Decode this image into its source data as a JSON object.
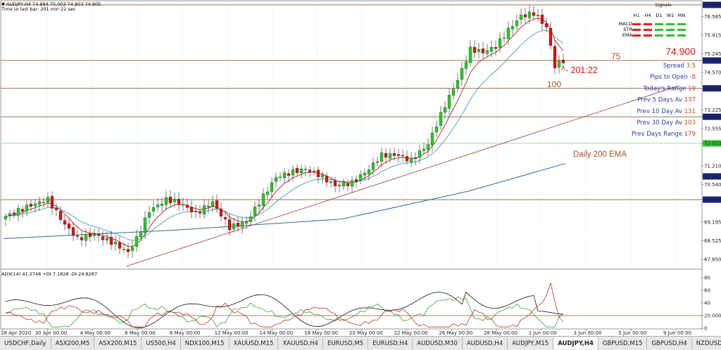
{
  "header": {
    "line1": "▼ AUDJPY,H4  74.984 75.002 74.903 74.905",
    "line2": "Time to last bar: 201 min 22 sec"
  },
  "signals": {
    "title": "Signals",
    "cols": [
      "H1",
      "H4",
      "D1",
      "W1",
      "MN"
    ],
    "rows": [
      {
        "name": "MACD",
        "colors": [
          "#e02020",
          "#e02020",
          "#30c030",
          "#30c030",
          "#30c030"
        ]
      },
      {
        "name": "STR",
        "colors": [
          "#e02020",
          "#e02020",
          "#30c030",
          "#30c030",
          "#30c030"
        ]
      },
      {
        "name": "EMA",
        "colors": [
          "#e02020",
          "#e02020",
          "#30c030",
          "#30c030",
          "#30c030"
        ]
      }
    ]
  },
  "price_display": "74.900",
  "info_panel": [
    {
      "label": "Spread",
      "value": "3.5"
    },
    {
      "label": "Pips to Open",
      "value": "-8"
    },
    {
      "label": "Today's Range",
      "value": "10"
    },
    {
      "label": "Prev 5 Days Av",
      "value": "137"
    },
    {
      "label": "Prev 10 Day Av",
      "value": "131"
    },
    {
      "label": "Prev 30 Day Av",
      "value": "103"
    },
    {
      "label": "Prev Days Range",
      "value": "179"
    }
  ],
  "annotations": {
    "label_75": "75",
    "timer": "^- 201:22",
    "label_100": "100",
    "ema_label": "Daily 200 EMA"
  },
  "adx_header": "ADX(14) 41.2748 +DI:7.1828 -DI:24.8287",
  "colors": {
    "bull": "#22cc22",
    "bear": "#dd1111",
    "ema_fast": "#b02020",
    "ema_mid": "#40a0b0",
    "ema_200": "#2a6aa0",
    "hline": "#8b5a3c",
    "trend": "#a05040",
    "adx": "#111111",
    "plus_di": "#3aa03a",
    "minus_di": "#c03020",
    "label_box": "#1a237e"
  },
  "chart_data": {
    "type": "candlestick",
    "symbol": "AUDJPY",
    "timeframe": "H4",
    "y_ticks": [
      "77.000",
      "76.585",
      "75.915",
      "75.245",
      "75.000",
      "74.570",
      "74.000",
      "73.225",
      "72.978",
      "72.555",
      "72.023",
      "71.210",
      "70.835",
      "70.540",
      "70.000",
      "69.195",
      "68.525",
      "67.850"
    ],
    "y_highlight_ticks": [
      "77.000",
      "75.000",
      "74.000",
      "72.978",
      "72.023",
      "70.835",
      "70.000"
    ],
    "ylim": [
      67.5,
      77.15
    ],
    "x_ticks": [
      "28 Apr 2020",
      "30 Apr 00:00",
      "4 May 00:00",
      "6 May 00:00",
      "8 May 00:00",
      "12 May 00:00",
      "14 May 00:00",
      "18 May 00:00",
      "20 May 00:00",
      "22 May 00:00",
      "26 May 00:00",
      "28 May 00:00",
      "1 Jun 00:00",
      "3 Jun 00:00",
      "5 Jun 00:00",
      "9 Jun 00:00"
    ],
    "horizontal_levels": [
      77.0,
      75.0,
      74.0,
      72.978,
      72.023,
      70.0
    ],
    "anchors": [
      [
        0,
        69.4
      ],
      [
        6,
        69.8
      ],
      [
        10,
        70.0
      ],
      [
        14,
        69.1
      ],
      [
        17,
        68.6
      ],
      [
        21,
        68.75
      ],
      [
        26,
        68.4
      ],
      [
        29,
        68.1
      ],
      [
        31,
        68.6
      ],
      [
        34,
        69.6
      ],
      [
        38,
        70.0
      ],
      [
        41,
        69.9
      ],
      [
        45,
        69.5
      ],
      [
        49,
        69.9
      ],
      [
        53,
        69.0
      ],
      [
        57,
        69.2
      ],
      [
        60,
        69.9
      ],
      [
        64,
        70.8
      ],
      [
        68,
        71.0
      ],
      [
        71,
        71.1
      ],
      [
        74,
        70.9
      ],
      [
        78,
        70.5
      ],
      [
        82,
        70.6
      ],
      [
        86,
        71.1
      ],
      [
        89,
        71.6
      ],
      [
        93,
        71.6
      ],
      [
        96,
        71.4
      ],
      [
        100,
        72.0
      ],
      [
        104,
        73.4
      ],
      [
        107,
        74.3
      ],
      [
        110,
        75.4
      ],
      [
        113,
        75.3
      ],
      [
        116,
        75.5
      ],
      [
        119,
        76.1
      ],
      [
        122,
        76.6
      ],
      [
        125,
        76.7
      ],
      [
        128,
        76.2
      ],
      [
        130,
        74.8
      ],
      [
        132,
        75.0
      ]
    ],
    "bar_count": 133,
    "ema_200": [
      [
        0,
        68.6
      ],
      [
        40,
        68.9
      ],
      [
        80,
        69.3
      ],
      [
        110,
        70.3
      ],
      [
        133,
        71.3
      ]
    ],
    "trendline": {
      "from": [
        29,
        67.6
      ],
      "to": [
        160,
        74.1
      ]
    },
    "adx_panel": {
      "ylim": [
        0,
        90
      ],
      "ticks": [
        "80",
        "60",
        "40",
        "20.0000",
        "0"
      ],
      "level": 20
    }
  }
}
